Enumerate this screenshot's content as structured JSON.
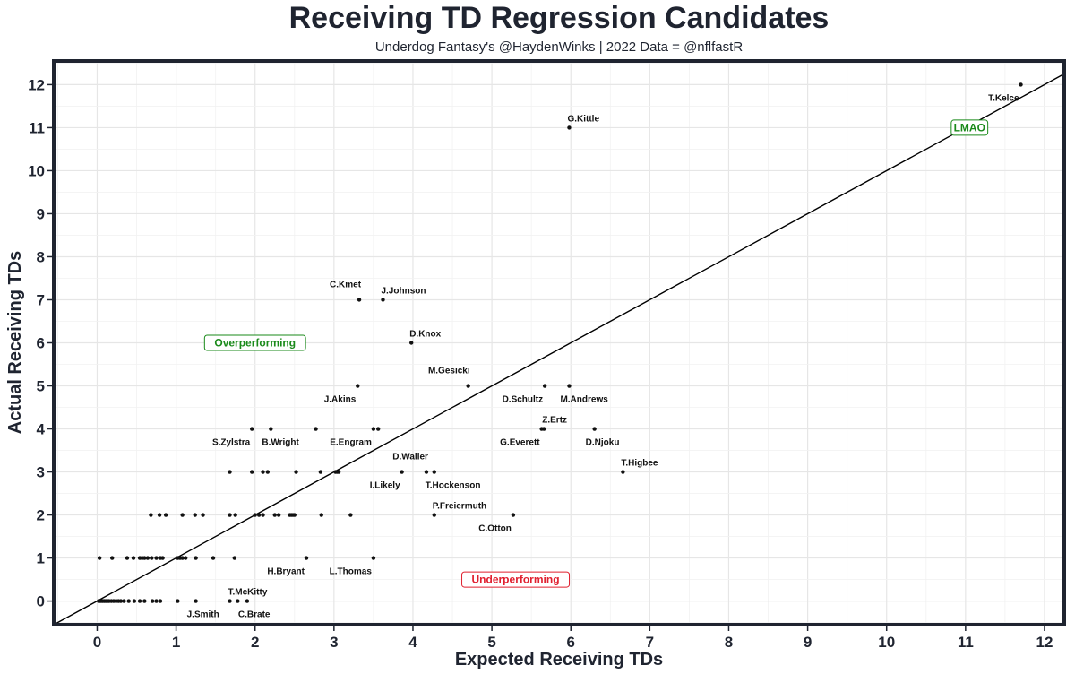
{
  "chart_data": {
    "type": "scatter",
    "title": "Receiving TD Regression Candidates",
    "subtitle": "Underdog Fantasy's @HaydenWinks | 2022 Data = @nflfastR",
    "xlabel": "Expected Receiving TDs",
    "ylabel": "Actual Receiving TDs",
    "xlim": [
      -0.55,
      12.25
    ],
    "ylim": [
      -0.55,
      12.55
    ],
    "xticks": [
      0,
      1,
      2,
      3,
      4,
      5,
      6,
      7,
      8,
      9,
      10,
      11,
      12
    ],
    "yticks": [
      0,
      1,
      2,
      3,
      4,
      5,
      6,
      7,
      8,
      9,
      10,
      11,
      12
    ],
    "grid": true,
    "reference_line": "y = x",
    "colors": {
      "point": "#111111",
      "line": "#000000",
      "grid_major": "#e6e6e6",
      "grid_minor": "#f2f2f2",
      "frame": "#1f2430",
      "overperforming": "#1a8a1a",
      "underperforming": "#e0202f",
      "lmao": "#1a8a1a"
    },
    "annotations": [
      {
        "text": "Overperforming",
        "x": 2.0,
        "y": 6,
        "color": "overperforming"
      },
      {
        "text": "Underperforming",
        "x": 5.3,
        "y": 0.5,
        "color": "underperforming"
      },
      {
        "text": "LMAO",
        "x": 11.05,
        "y": 11,
        "color": "lmao"
      }
    ],
    "labeled_points": [
      {
        "name": "T.Kelce",
        "x": 11.7,
        "y": 12,
        "label_pos": "below-left"
      },
      {
        "name": "G.Kittle",
        "x": 5.98,
        "y": 11,
        "label_pos": "above-right"
      },
      {
        "name": "C.Kmet",
        "x": 3.32,
        "y": 7,
        "label_pos": "above-left"
      },
      {
        "name": "J.Johnson",
        "x": 3.62,
        "y": 7,
        "label_pos": "above-right"
      },
      {
        "name": "D.Knox",
        "x": 3.98,
        "y": 6,
        "label_pos": "above-right"
      },
      {
        "name": "J.Akins",
        "x": 3.3,
        "y": 5,
        "label_pos": "below-left"
      },
      {
        "name": "M.Gesicki",
        "x": 4.7,
        "y": 5,
        "label_pos": "above-left"
      },
      {
        "name": "D.Schultz",
        "x": 5.67,
        "y": 5,
        "label_pos": "below-left"
      },
      {
        "name": "M.Andrews",
        "x": 5.98,
        "y": 5,
        "label_pos": "below-right"
      },
      {
        "name": "S.Zylstra",
        "x": 1.96,
        "y": 4,
        "label_pos": "below-left"
      },
      {
        "name": "B.Wright",
        "x": 2.2,
        "y": 4,
        "label_pos": "below-right"
      },
      {
        "name": "E.Engram",
        "x": 3.5,
        "y": 4,
        "label_pos": "below-left"
      },
      {
        "name": "Z.Ertz",
        "x": 5.66,
        "y": 4,
        "label_pos": "above-right"
      },
      {
        "name": "G.Everett",
        "x": 5.63,
        "y": 4,
        "label_pos": "below-left"
      },
      {
        "name": "D.Njoku",
        "x": 6.3,
        "y": 4,
        "label_pos": "below-right"
      },
      {
        "name": "D.Waller",
        "x": 4.17,
        "y": 3,
        "label_pos": "above-left"
      },
      {
        "name": "I.Likely",
        "x": 3.86,
        "y": 3,
        "label_pos": "below-left"
      },
      {
        "name": "T.Hockenson",
        "x": 4.27,
        "y": 3,
        "label_pos": "below-right"
      },
      {
        "name": "T.Higbee",
        "x": 6.66,
        "y": 3,
        "label_pos": "above-right"
      },
      {
        "name": "P.Freiermuth",
        "x": 4.27,
        "y": 2,
        "label_pos": "above-right"
      },
      {
        "name": "C.Otton",
        "x": 5.27,
        "y": 2,
        "label_pos": "below-left"
      },
      {
        "name": "H.Bryant",
        "x": 2.65,
        "y": 1,
        "label_pos": "below-left"
      },
      {
        "name": "L.Thomas",
        "x": 3.5,
        "y": 1,
        "label_pos": "below-left"
      },
      {
        "name": "T.McKitty",
        "x": 1.68,
        "y": 0,
        "label_pos": "above-right"
      },
      {
        "name": "J.Smith",
        "x": 1.25,
        "y": 0,
        "label_pos": "below-right"
      },
      {
        "name": "C.Brate",
        "x": 1.9,
        "y": 0,
        "label_pos": "below-right"
      }
    ],
    "other_points": [
      [
        3.06,
        3
      ],
      [
        1.74,
        1
      ],
      [
        1.78,
        0
      ],
      [
        0.02,
        0
      ],
      [
        0.03,
        0
      ],
      [
        0.05,
        0
      ],
      [
        0.07,
        0
      ],
      [
        0.09,
        0
      ],
      [
        0.11,
        0
      ],
      [
        0.13,
        0
      ],
      [
        0.15,
        0
      ],
      [
        0.18,
        0
      ],
      [
        0.21,
        0
      ],
      [
        0.24,
        0
      ],
      [
        0.27,
        0
      ],
      [
        0.3,
        0
      ],
      [
        0.34,
        0
      ],
      [
        0.4,
        0
      ],
      [
        0.47,
        0
      ],
      [
        0.54,
        0
      ],
      [
        0.6,
        0
      ],
      [
        0.7,
        0
      ],
      [
        0.75,
        0
      ],
      [
        0.8,
        0
      ],
      [
        1.02,
        0
      ],
      [
        0.03,
        1
      ],
      [
        0.19,
        1
      ],
      [
        0.38,
        1
      ],
      [
        0.46,
        1
      ],
      [
        0.54,
        1
      ],
      [
        0.57,
        1
      ],
      [
        0.6,
        1
      ],
      [
        0.64,
        1
      ],
      [
        0.69,
        1
      ],
      [
        0.75,
        1
      ],
      [
        0.8,
        1
      ],
      [
        0.83,
        1
      ],
      [
        1.02,
        1
      ],
      [
        1.05,
        1
      ],
      [
        1.08,
        1
      ],
      [
        1.12,
        1
      ],
      [
        1.25,
        1
      ],
      [
        1.47,
        1
      ],
      [
        0.68,
        2
      ],
      [
        0.79,
        2
      ],
      [
        0.87,
        2
      ],
      [
        1.08,
        2
      ],
      [
        1.24,
        2
      ],
      [
        1.34,
        2
      ],
      [
        1.68,
        2
      ],
      [
        1.75,
        2
      ],
      [
        2.0,
        2
      ],
      [
        2.05,
        2
      ],
      [
        2.1,
        2
      ],
      [
        2.25,
        2
      ],
      [
        2.3,
        2
      ],
      [
        2.44,
        2
      ],
      [
        2.46,
        2
      ],
      [
        2.48,
        2
      ],
      [
        2.5,
        2
      ],
      [
        2.84,
        2
      ],
      [
        3.21,
        2
      ],
      [
        1.68,
        3
      ],
      [
        1.96,
        3
      ],
      [
        2.1,
        3
      ],
      [
        2.16,
        3
      ],
      [
        2.52,
        3
      ],
      [
        2.83,
        3
      ],
      [
        3.02,
        3
      ],
      [
        3.04,
        3
      ],
      [
        2.77,
        4
      ],
      [
        3.56,
        4
      ]
    ]
  }
}
